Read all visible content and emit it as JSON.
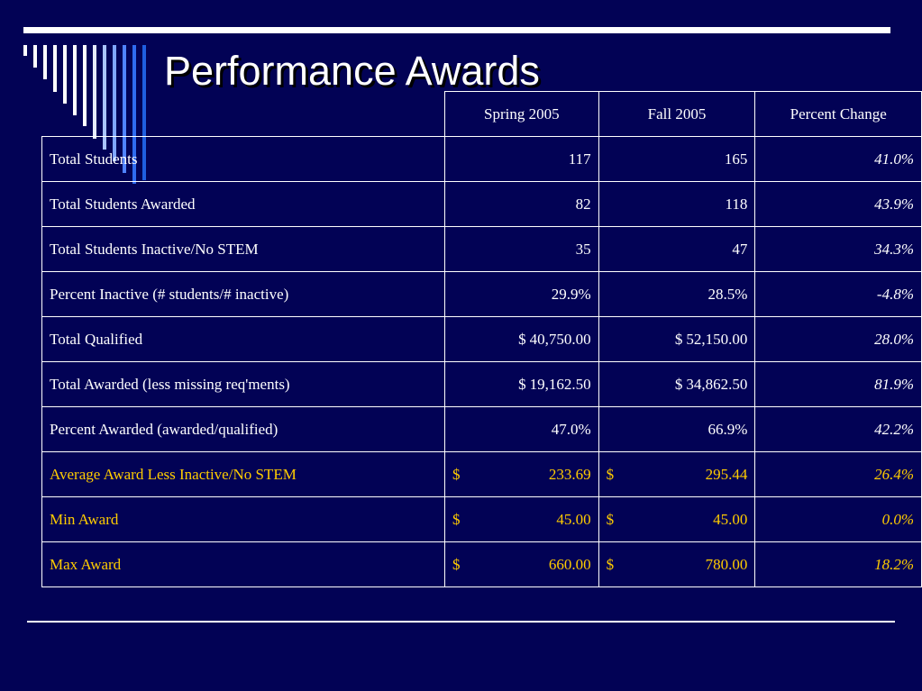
{
  "slide": {
    "title": "Performance Awards"
  },
  "colors": {
    "background": "#020255",
    "text": "#ffffff",
    "highlight": "#ffcc00"
  },
  "table": {
    "headers": [
      "",
      "Spring 2005",
      "Fall 2005",
      "Percent Change"
    ],
    "rows": [
      {
        "label": "Total Students",
        "spring": "117",
        "fall": "165",
        "change": "41.0%",
        "highlight": false
      },
      {
        "label": "Total Students Awarded",
        "spring": "82",
        "fall": "118",
        "change": "43.9%",
        "highlight": false
      },
      {
        "label": "Total Students Inactive/No STEM",
        "spring": "35",
        "fall": "47",
        "change": "34.3%",
        "highlight": false
      },
      {
        "label": "Percent Inactive (# students/# inactive)",
        "spring": "29.9%",
        "fall": "28.5%",
        "change": "-4.8%",
        "highlight": false
      },
      {
        "label": "Total Qualified",
        "spring": "$ 40,750.00",
        "fall": "$  52,150.00",
        "change": "28.0%",
        "highlight": false
      },
      {
        "label": "Total Awarded (less missing req'ments)",
        "spring": "$   19,162.50",
        "fall": "$ 34,862.50",
        "change": "81.9%",
        "highlight": false
      },
      {
        "label": "Percent Awarded (awarded/qualified)",
        "spring": "47.0%",
        "fall": "66.9%",
        "change": "42.2%",
        "highlight": false
      },
      {
        "label": "Average Award Less Inactive/No STEM",
        "spring": "$      233.69",
        "fall": "$      295.44",
        "change": "26.4%",
        "highlight": true
      },
      {
        "label": "Min Award",
        "spring": "$        45.00",
        "fall": "$        45.00",
        "change": "0.0%",
        "highlight": true
      },
      {
        "label": "Max Award",
        "spring": "$     660.00",
        "fall": "$     780.00",
        "change": "18.2%",
        "highlight": true
      }
    ]
  }
}
